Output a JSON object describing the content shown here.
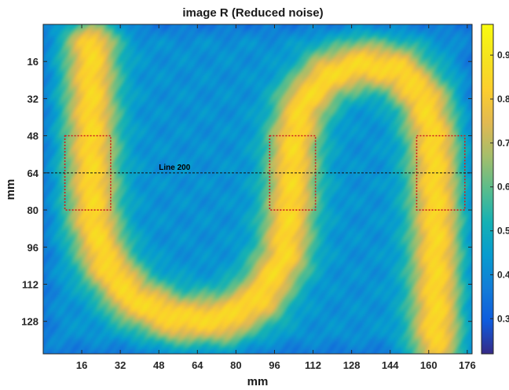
{
  "chart_data": {
    "type": "heatmap",
    "title": "image R (Reduced noise)",
    "xlabel": "mm",
    "ylabel": "mm",
    "xlim": [
      0,
      178
    ],
    "ylim": [
      0,
      142
    ],
    "y_reversed": true,
    "x_ticks": [
      16,
      32,
      48,
      64,
      80,
      96,
      112,
      128,
      144,
      160,
      176
    ],
    "y_ticks": [
      16,
      32,
      48,
      64,
      80,
      96,
      112,
      128
    ],
    "colormap": "parula",
    "color_range": [
      0.22,
      0.97
    ],
    "colorbar_ticks": [
      0.3,
      0.4,
      0.5,
      0.6,
      0.7,
      0.8,
      0.9
    ],
    "colorbar_tick_labels": [
      "0.3",
      "0.4",
      "0.5",
      "0.6",
      "0.7",
      "0.8",
      "0.9"
    ],
    "background_value": 0.42,
    "band": {
      "peak_value": 0.85,
      "half_width_mm": 8,
      "centerline": [
        {
          "x": 20,
          "y": 8
        },
        {
          "x": 20,
          "y": 30
        },
        {
          "x": 20,
          "y": 60
        },
        {
          "x": 21,
          "y": 85
        },
        {
          "x": 26,
          "y": 103
        },
        {
          "x": 37,
          "y": 118
        },
        {
          "x": 55,
          "y": 127
        },
        {
          "x": 75,
          "y": 127
        },
        {
          "x": 90,
          "y": 118
        },
        {
          "x": 100,
          "y": 100
        },
        {
          "x": 103,
          "y": 75
        },
        {
          "x": 104,
          "y": 50
        },
        {
          "x": 108,
          "y": 34
        },
        {
          "x": 118,
          "y": 22
        },
        {
          "x": 133,
          "y": 17
        },
        {
          "x": 148,
          "y": 20
        },
        {
          "x": 158,
          "y": 32
        },
        {
          "x": 162,
          "y": 50
        },
        {
          "x": 163,
          "y": 80
        },
        {
          "x": 163,
          "y": 110
        },
        {
          "x": 163,
          "y": 140
        }
      ]
    },
    "roi_boxes": [
      {
        "x0": 9,
        "x1": 28,
        "y0": 48,
        "y1": 80
      },
      {
        "x0": 94,
        "x1": 113,
        "y0": 48,
        "y1": 80
      },
      {
        "x0": 155,
        "x1": 175,
        "y0": 48,
        "y1": 80
      }
    ],
    "roi_color": "#cc1f1f",
    "line_profile": {
      "y": 64,
      "label": "Line 200"
    }
  }
}
